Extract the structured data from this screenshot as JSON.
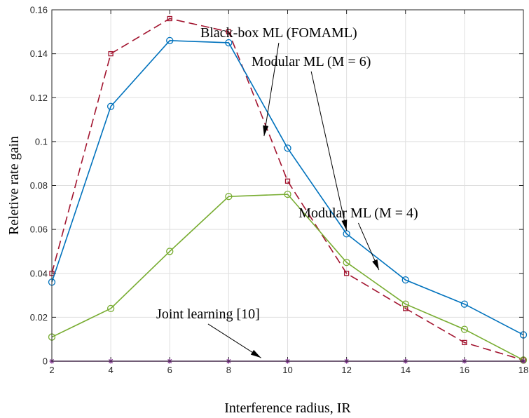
{
  "chart_data": {
    "type": "line",
    "title": "",
    "xlabel": "Interference radius, IR",
    "ylabel": "Reletive rate gain",
    "xlim": [
      2,
      18
    ],
    "ylim": [
      0,
      0.16
    ],
    "xticks": [
      2,
      4,
      6,
      8,
      10,
      12,
      14,
      16,
      18
    ],
    "xtick_labels": [
      "2",
      "4",
      "6",
      "8",
      "10",
      "12",
      "14",
      "16",
      "18"
    ],
    "yticks": [
      0,
      0.02,
      0.04,
      0.06,
      0.08,
      0.1,
      0.12,
      0.14,
      0.16
    ],
    "ytick_labels": [
      "0",
      "0.02",
      "0.04",
      "0.06",
      "0.08",
      "0.1",
      "0.12",
      "0.14",
      "0.16"
    ],
    "grid": true,
    "legend": "none",
    "x": [
      2,
      4,
      6,
      8,
      10,
      12,
      14,
      16,
      18
    ],
    "series": [
      {
        "name": "Black-box ML (FOMAML)",
        "color": "#a2142f",
        "dash": "dashed",
        "marker": "square",
        "values": [
          0.04,
          0.14,
          0.156,
          0.15,
          0.082,
          0.04,
          0.024,
          0.0085,
          0.0005
        ]
      },
      {
        "name": "Modular ML (M = 6)",
        "color": "#0072bd",
        "dash": "solid",
        "marker": "circle",
        "values": [
          0.036,
          0.116,
          0.146,
          0.145,
          0.097,
          0.058,
          0.037,
          0.026,
          0.012
        ]
      },
      {
        "name": "Modular ML (M = 4)",
        "color": "#77ac30",
        "dash": "solid",
        "marker": "circle",
        "values": [
          0.011,
          0.024,
          0.05,
          0.075,
          0.076,
          0.045,
          0.026,
          0.0145,
          0.0005
        ]
      },
      {
        "name": "Joint learning [10]",
        "color": "#7e2f8e",
        "dash": "solid",
        "marker": "asterisk",
        "values": [
          0,
          0,
          0,
          0,
          0,
          0,
          0,
          0,
          0
        ]
      }
    ],
    "annotations": [
      {
        "text": "Black-box ML (FOMAML)",
        "text_x": 9.7,
        "text_y": 0.1475,
        "arrow_to": [
          9.2,
          0.1025
        ]
      },
      {
        "text": "Modular ML (M = 6)",
        "text_x": 10.8,
        "text_y": 0.1345,
        "arrow_to": [
          12.0,
          0.0595
        ]
      },
      {
        "text": "Modular ML (M = 4)",
        "text_x": 12.4,
        "text_y": 0.0655,
        "arrow_to": [
          13.1,
          0.0415
        ]
      },
      {
        "text": "Joint learning [10]",
        "text_x": 7.3,
        "text_y": 0.0195,
        "arrow_to": [
          9.1,
          0.0015
        ]
      }
    ]
  }
}
